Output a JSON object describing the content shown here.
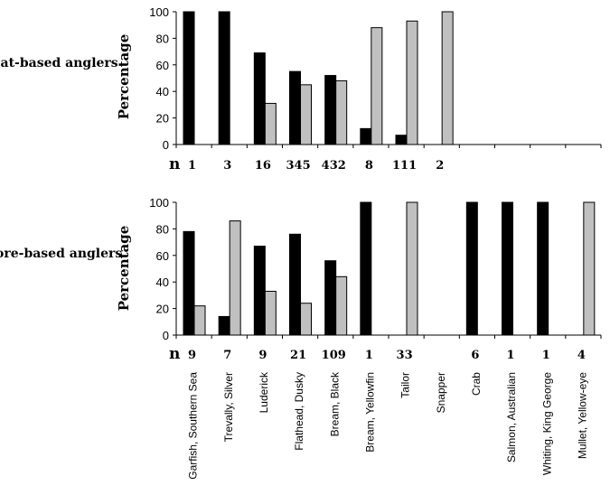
{
  "chart_data": [
    {
      "type": "bar",
      "title": "Boat-based anglers",
      "ylabel": "Percentage",
      "ylim": [
        0,
        100
      ],
      "yticks": [
        0,
        20,
        40,
        60,
        80,
        100
      ],
      "n_label": "n",
      "categories": [
        "Garfish, Southern Sea",
        "Trevally, Silver",
        "Luderick",
        "Flathead, Dusky",
        "Bream, Black",
        "Bream, Yellowfin",
        "Tailor",
        "Snapper",
        "Crab",
        "Salmon, Australian",
        "Whiting, King George",
        "Mullet, Yellow-eye"
      ],
      "n": [
        "1",
        "3",
        "16",
        "345",
        "432",
        "8",
        "111",
        "2",
        "",
        "",
        "",
        ""
      ],
      "series": [
        {
          "color": "#000000",
          "values": [
            100,
            100,
            69,
            55,
            52,
            12,
            7,
            0,
            null,
            null,
            null,
            null
          ]
        },
        {
          "color": "#c0c0c0",
          "values": [
            0,
            0,
            31,
            45,
            48,
            88,
            93,
            100,
            null,
            null,
            null,
            null
          ]
        }
      ]
    },
    {
      "type": "bar",
      "title": "Shore-based anglers",
      "ylabel": "Percentage",
      "ylim": [
        0,
        100
      ],
      "yticks": [
        0,
        20,
        40,
        60,
        80,
        100
      ],
      "n_label": "n",
      "categories": [
        "Garfish, Southern Sea",
        "Trevally, Silver",
        "Luderick",
        "Flathead, Dusky",
        "Bream, Black",
        "Bream, Yellowfin",
        "Tailor",
        "Snapper",
        "Crab",
        "Salmon, Australian",
        "Whiting, King George",
        "Mullet, Yellow-eye"
      ],
      "n": [
        "9",
        "7",
        "9",
        "21",
        "109",
        "1",
        "33",
        "",
        "6",
        "1",
        "1",
        "4"
      ],
      "series": [
        {
          "color": "#000000",
          "values": [
            78,
            14,
            67,
            76,
            56,
            100,
            0,
            null,
            100,
            100,
            100,
            0
          ]
        },
        {
          "color": "#c0c0c0",
          "values": [
            22,
            86,
            33,
            24,
            44,
            0,
            100,
            null,
            0,
            0,
            0,
            100
          ]
        }
      ]
    }
  ]
}
